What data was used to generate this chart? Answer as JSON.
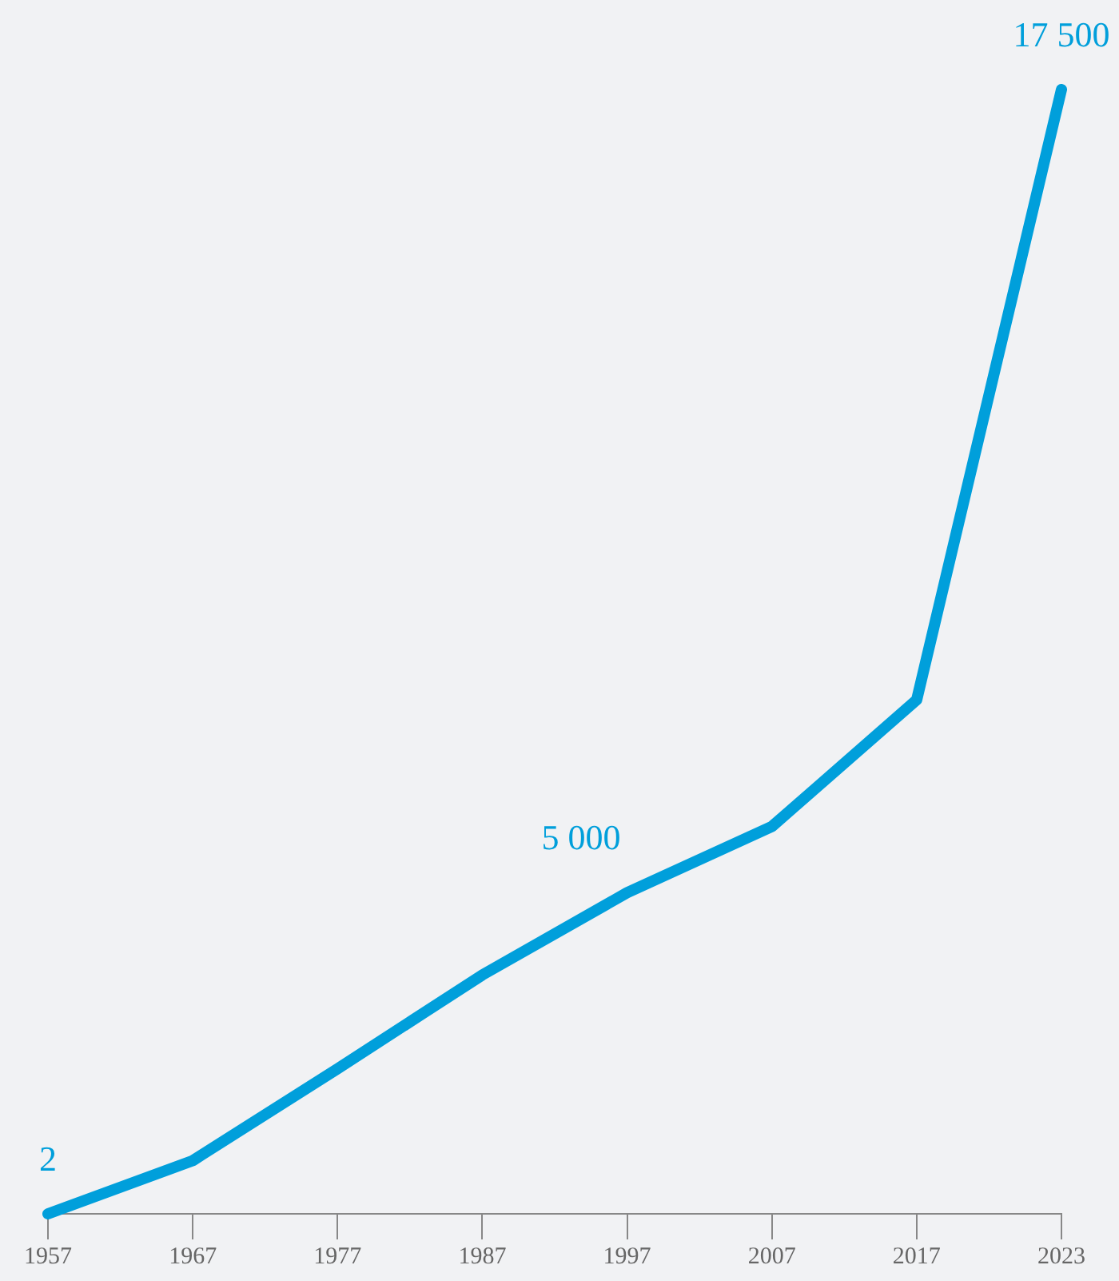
{
  "chart_data": {
    "type": "line",
    "categories": [
      "1957",
      "1967",
      "1977",
      "1987",
      "1997",
      "2007",
      "2017",
      "2023"
    ],
    "values": [
      2,
      830,
      2260,
      3720,
      5000,
      6030,
      8000,
      17500
    ],
    "value_labels": [
      "2",
      null,
      null,
      null,
      "5 000",
      null,
      null,
      "17 500"
    ],
    "color": "#009fdb",
    "grid": false,
    "legend": false,
    "marker": "none",
    "line_style": "solid",
    "tick_labels": "x"
  }
}
